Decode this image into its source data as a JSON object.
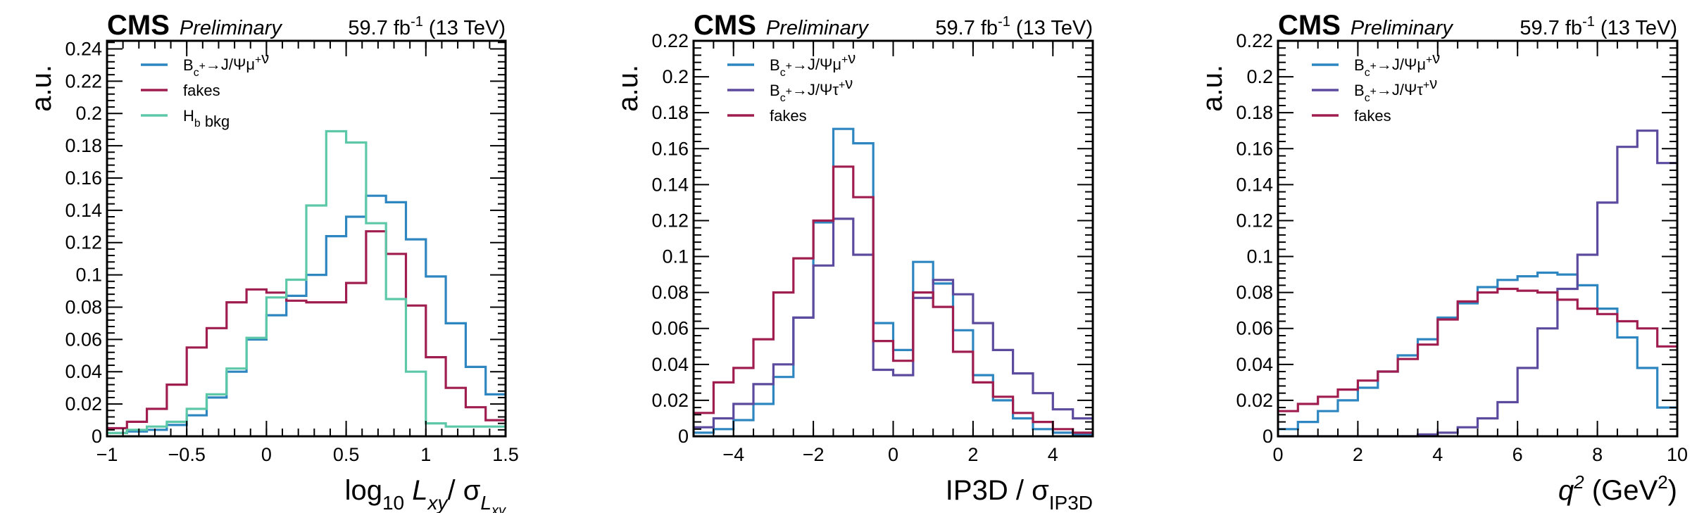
{
  "colors": {
    "blue": "#2e86c1",
    "red": "#a01e4f",
    "teal": "#5cc8a8",
    "purple": "#5b4a9e"
  },
  "panels": [
    {
      "header": {
        "cms": "CMS",
        "prelim": "Preliminary",
        "lumi": "59.7 fb",
        "lumi_sup": "-1",
        "energy": " (13 TeV)"
      },
      "ylabel": "a.u.",
      "xlabel": {
        "parts": [
          {
            "t": "log"
          },
          {
            "t": "10",
            "sub": true
          },
          {
            "t": " "
          },
          {
            "t": "L",
            "it": true
          },
          {
            "t": "xy",
            "it": true,
            "sub": true
          },
          {
            "t": "/  σ"
          },
          {
            "t": "L",
            "it": true,
            "sub": true
          },
          {
            "t": "xy",
            "it": true,
            "sub2": true
          }
        ]
      },
      "xlim": [
        -1,
        1.5
      ],
      "ylim": [
        0,
        0.245
      ],
      "xticks": [
        -1,
        -0.5,
        0,
        0.5,
        1,
        1.5
      ],
      "xtick_labels": [
        "−1",
        "−0.5",
        "0",
        "0.5",
        "1",
        "1.5"
      ],
      "yticks": [
        0,
        0.02,
        0.04,
        0.06,
        0.08,
        0.1,
        0.12,
        0.14,
        0.16,
        0.18,
        0.2,
        0.22,
        0.24
      ],
      "ytick_labels": [
        "0",
        "0.02",
        "0.04",
        "0.06",
        "0.08",
        "0.1",
        "0.12",
        "0.14",
        "0.16",
        "0.18",
        "0.2",
        "0.22",
        "0.24"
      ],
      "legend": [
        {
          "label": "B_c^+→J/Ψμ^+ν",
          "series": 0
        },
        {
          "label": "fakes",
          "series": 1
        },
        {
          "label": "H_b bkg",
          "series": 2
        }
      ],
      "series": [
        {
          "name": "B_c^+→J/Ψμ^+ν",
          "color": "blue",
          "edges": [
            -1,
            -0.875,
            -0.75,
            -0.625,
            -0.5,
            -0.375,
            -0.25,
            -0.125,
            0,
            0.125,
            0.25,
            0.375,
            0.5,
            0.625,
            0.75,
            0.875,
            1,
            1.125,
            1.25,
            1.375,
            1.5
          ],
          "values": [
            0.002,
            0.003,
            0.004,
            0.007,
            0.013,
            0.024,
            0.04,
            0.06,
            0.075,
            0.087,
            0.1,
            0.124,
            0.136,
            0.149,
            0.145,
            0.122,
            0.099,
            0.07,
            0.043,
            0.026
          ]
        },
        {
          "name": "fakes",
          "color": "red",
          "edges": [
            -1,
            -0.875,
            -0.75,
            -0.625,
            -0.5,
            -0.375,
            -0.25,
            -0.125,
            0,
            0.125,
            0.25,
            0.375,
            0.5,
            0.625,
            0.75,
            0.875,
            1,
            1.125,
            1.25,
            1.375,
            1.5
          ],
          "values": [
            0.005,
            0.009,
            0.017,
            0.032,
            0.055,
            0.067,
            0.083,
            0.091,
            0.089,
            0.084,
            0.083,
            0.083,
            0.095,
            0.127,
            0.113,
            0.081,
            0.049,
            0.03,
            0.018,
            0.01
          ]
        },
        {
          "name": "H_b bkg",
          "color": "teal",
          "edges": [
            -1,
            -0.875,
            -0.75,
            -0.625,
            -0.5,
            -0.375,
            -0.25,
            -0.125,
            0,
            0.125,
            0.25,
            0.375,
            0.5,
            0.625,
            0.75,
            0.875,
            1,
            1.125,
            1.25,
            1.375,
            1.5
          ],
          "values": [
            0.002,
            0.004,
            0.006,
            0.009,
            0.017,
            0.026,
            0.042,
            0.061,
            0.086,
            0.097,
            0.143,
            0.189,
            0.182,
            0.132,
            0.085,
            0.04,
            0.008,
            0.006,
            0.006,
            0.006
          ]
        }
      ]
    },
    {
      "header": {
        "cms": "CMS",
        "prelim": "Preliminary",
        "lumi": "59.7 fb",
        "lumi_sup": "-1",
        "energy": " (13 TeV)"
      },
      "ylabel": "a.u.",
      "xlabel": {
        "parts": [
          {
            "t": "IP3D / σ"
          },
          {
            "t": "IP3D",
            "sub": true
          }
        ]
      },
      "xlim": [
        -5,
        5
      ],
      "ylim": [
        0,
        0.22
      ],
      "xticks": [
        -4,
        -2,
        0,
        2,
        4
      ],
      "xtick_labels": [
        "−4",
        "−2",
        "0",
        "2",
        "4"
      ],
      "yticks": [
        0,
        0.02,
        0.04,
        0.06,
        0.08,
        0.1,
        0.12,
        0.14,
        0.16,
        0.18,
        0.2,
        0.22
      ],
      "ytick_labels": [
        "0",
        "0.02",
        "0.04",
        "0.06",
        "0.08",
        "0.1",
        "0.12",
        "0.14",
        "0.16",
        "0.18",
        "0.2",
        "0.22"
      ],
      "legend": [
        {
          "label": "B_c^+→J/Ψμ^+ν",
          "series": 0
        },
        {
          "label": "B_c^+→J/Ψτ^+ν",
          "series": 1
        },
        {
          "label": "fakes",
          "series": 2
        }
      ],
      "series": [
        {
          "name": "B_c^+→J/Ψμ^+ν",
          "color": "blue",
          "edges": [
            -5,
            -4.5,
            -4,
            -3.5,
            -3,
            -2.5,
            -2,
            -1.5,
            -1,
            -0.5,
            0,
            0.5,
            1,
            1.5,
            2,
            2.5,
            3,
            3.5,
            4,
            4.5,
            5
          ],
          "values": [
            0.002,
            0.004,
            0.009,
            0.018,
            0.033,
            0.066,
            0.119,
            0.171,
            0.163,
            0.063,
            0.048,
            0.097,
            0.085,
            0.059,
            0.034,
            0.02,
            0.01,
            0.004,
            0.002,
            0.001
          ]
        },
        {
          "name": "B_c^+→J/Ψτ^+ν",
          "color": "purple",
          "edges": [
            -5,
            -4.5,
            -4,
            -3.5,
            -3,
            -2.5,
            -2,
            -1.5,
            -1,
            -0.5,
            0,
            0.5,
            1,
            1.5,
            2,
            2.5,
            3,
            3.5,
            4,
            4.5,
            5
          ],
          "values": [
            0.005,
            0.01,
            0.018,
            0.029,
            0.04,
            0.066,
            0.095,
            0.121,
            0.101,
            0.037,
            0.034,
            0.077,
            0.087,
            0.079,
            0.063,
            0.048,
            0.035,
            0.024,
            0.015,
            0.01
          ]
        },
        {
          "name": "fakes",
          "color": "red",
          "edges": [
            -5,
            -4.5,
            -4,
            -3.5,
            -3,
            -2.5,
            -2,
            -1.5,
            -1,
            -0.5,
            0,
            0.5,
            1,
            1.5,
            2,
            2.5,
            3,
            3.5,
            4,
            4.5,
            5
          ],
          "values": [
            0.013,
            0.03,
            0.038,
            0.054,
            0.08,
            0.099,
            0.12,
            0.15,
            0.133,
            0.053,
            0.042,
            0.08,
            0.072,
            0.047,
            0.03,
            0.022,
            0.013,
            0.008,
            0.004,
            0.002
          ]
        }
      ]
    },
    {
      "header": {
        "cms": "CMS",
        "prelim": "Preliminary",
        "lumi": "59.7 fb",
        "lumi_sup": "-1",
        "energy": " (13 TeV)"
      },
      "ylabel": "a.u.",
      "xlabel": {
        "parts": [
          {
            "t": "q",
            "it": true
          },
          {
            "t": "2",
            "sup": true,
            "it": true
          },
          {
            "t": " (GeV"
          },
          {
            "t": "2",
            "sup": true
          },
          {
            "t": ")"
          }
        ]
      },
      "xlim": [
        0,
        10
      ],
      "ylim": [
        0,
        0.22
      ],
      "xticks": [
        0,
        2,
        4,
        6,
        8,
        10
      ],
      "xtick_labels": [
        "0",
        "2",
        "4",
        "6",
        "8",
        "10"
      ],
      "yticks": [
        0,
        0.02,
        0.04,
        0.06,
        0.08,
        0.1,
        0.12,
        0.14,
        0.16,
        0.18,
        0.2,
        0.22
      ],
      "ytick_labels": [
        "0",
        "0.02",
        "0.04",
        "0.06",
        "0.08",
        "0.1",
        "0.12",
        "0.14",
        "0.16",
        "0.18",
        "0.2",
        "0.22"
      ],
      "legend": [
        {
          "label": "B_c^+→J/Ψμ^+ν",
          "series": 0
        },
        {
          "label": "B_c^+→J/Ψτ^+ν",
          "series": 1
        },
        {
          "label": "fakes",
          "series": 2
        }
      ],
      "series": [
        {
          "name": "B_c^+→J/Ψμ^+ν",
          "color": "blue",
          "edges": [
            0,
            0.5,
            1,
            1.5,
            2,
            2.5,
            3,
            3.5,
            4,
            4.5,
            5,
            5.5,
            6,
            6.5,
            7,
            7.5,
            8,
            8.5,
            9,
            9.5,
            10
          ],
          "values": [
            0.004,
            0.008,
            0.014,
            0.02,
            0.027,
            0.036,
            0.045,
            0.054,
            0.066,
            0.074,
            0.083,
            0.087,
            0.089,
            0.091,
            0.09,
            0.084,
            0.071,
            0.055,
            0.038,
            0.016
          ]
        },
        {
          "name": "B_c^+→J/Ψτ^+ν",
          "color": "purple",
          "edges": [
            0,
            0.5,
            1,
            1.5,
            2,
            2.5,
            3,
            3.5,
            4,
            4.5,
            5,
            5.5,
            6,
            6.5,
            7,
            7.5,
            8,
            8.5,
            9,
            9.5,
            10
          ],
          "values": [
            0,
            0,
            0,
            0,
            0,
            0,
            0,
            0.001,
            0.002,
            0.005,
            0.01,
            0.019,
            0.038,
            0.06,
            0.082,
            0.101,
            0.13,
            0.161,
            0.17,
            0.152
          ]
        },
        {
          "name": "fakes",
          "color": "red",
          "edges": [
            0,
            0.5,
            1,
            1.5,
            2,
            2.5,
            3,
            3.5,
            4,
            4.5,
            5,
            5.5,
            6,
            6.5,
            7,
            7.5,
            8,
            8.5,
            9,
            9.5,
            10
          ],
          "values": [
            0.014,
            0.018,
            0.022,
            0.026,
            0.031,
            0.036,
            0.043,
            0.051,
            0.065,
            0.075,
            0.08,
            0.082,
            0.081,
            0.08,
            0.076,
            0.071,
            0.068,
            0.064,
            0.06,
            0.05
          ]
        }
      ]
    }
  ],
  "chart_data": [
    {
      "type": "histogram",
      "xlabel": "log10 Lxy / σLxy",
      "ylabel": "a.u.",
      "xlim": [
        -1,
        1.5
      ],
      "ylim": [
        0,
        0.245
      ],
      "series_names": [
        "B_c^+→J/Ψμ^+ν",
        "fakes",
        "H_b bkg"
      ],
      "legend_position": "top-left"
    },
    {
      "type": "histogram",
      "xlabel": "IP3D / σIP3D",
      "ylabel": "a.u.",
      "xlim": [
        -5,
        5
      ],
      "ylim": [
        0,
        0.22
      ],
      "series_names": [
        "B_c^+→J/Ψμ^+ν",
        "B_c^+→J/Ψτ^+ν",
        "fakes"
      ],
      "legend_position": "top-left"
    },
    {
      "type": "histogram",
      "xlabel": "q2 (GeV2)",
      "ylabel": "a.u.",
      "xlim": [
        0,
        10
      ],
      "ylim": [
        0,
        0.22
      ],
      "series_names": [
        "B_c^+→J/Ψμ^+ν",
        "B_c^+→J/Ψτ^+ν",
        "fakes"
      ],
      "legend_position": "top-left"
    }
  ]
}
